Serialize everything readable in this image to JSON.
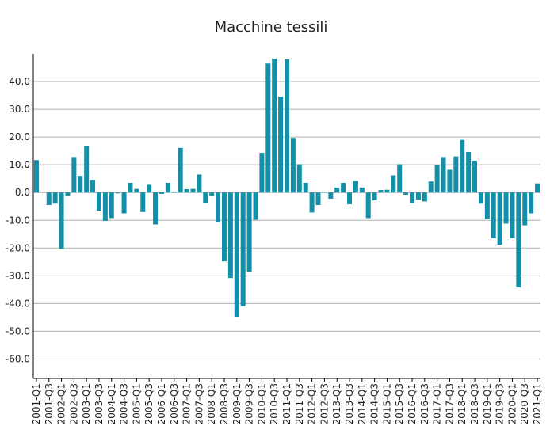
{
  "chart_data": {
    "type": "bar",
    "title": "Macchine tessili",
    "categories": [
      "2001-Q1",
      null,
      "2001-Q3",
      null,
      "2002-Q1",
      null,
      "2002-Q3",
      null,
      "2003-Q1",
      null,
      "2003-Q3",
      null,
      "2004-Q1",
      null,
      "2004-Q3",
      null,
      "2005-Q1",
      null,
      "2005-Q3",
      null,
      "2006-Q1",
      null,
      "2006-Q3",
      null,
      "2007-Q1",
      null,
      "2007-Q3",
      null,
      "2008-Q1",
      null,
      "2008-Q3",
      null,
      "2009-Q1",
      null,
      "2009-Q3",
      null,
      "2010-Q1",
      null,
      "2010-Q3",
      null,
      "2011-Q1",
      null,
      "2011-Q3",
      null,
      "2012-Q1",
      null,
      "2012-Q3",
      null,
      "2013-Q1",
      null,
      "2013-Q3",
      null,
      "2014-Q1",
      null,
      "2014-Q3",
      null,
      "2015-Q1",
      null,
      "2015-Q3",
      null,
      "2016-Q1",
      null,
      "2016-Q3",
      null,
      "2017-Q1",
      null,
      "2017-Q3",
      null,
      "2018-Q1",
      null,
      "2018-Q3",
      null,
      "2019-Q1",
      null,
      "2019-Q3",
      null,
      "2020-Q1",
      null,
      "2020-Q3",
      null,
      "2021-Q1"
    ],
    "values": [
      11.7,
      0,
      -4.5,
      -4,
      -20.3,
      -1.2,
      12.8,
      6,
      16.9,
      4.6,
      -6.5,
      -10.2,
      -9.2,
      -0.3,
      -7.5,
      3.5,
      1.3,
      -7,
      2.8,
      -11.5,
      -0.5,
      3.5,
      0.3,
      16.1,
      1.2,
      1.3,
      6.5,
      -3.8,
      -1.2,
      -10.7,
      -24.8,
      -30.8,
      -44.8,
      -41,
      -28.5,
      -9.8,
      14.3,
      46.5,
      48.3,
      34.6,
      48,
      19.7,
      10.2,
      3.5,
      -7.2,
      -4.5,
      0.2,
      -2.2,
      1.8,
      3.5,
      -4.2,
      4.2,
      1.8,
      -9.2,
      -2.8,
      0.9,
      1,
      6.2,
      10.2,
      -0.8,
      -3.8,
      -2.5,
      -3.2,
      4,
      10,
      12.8,
      8.2,
      13,
      19,
      14.6,
      11.5,
      -4,
      -9.5,
      -16.5,
      -18.8,
      -11.2,
      -16.5,
      -34.2,
      -11.8,
      -7.5,
      3.3
    ],
    "color": "#1390a8",
    "ylim": [
      -67,
      50
    ],
    "yticks": [
      {
        "value": -60,
        "label": "-60.0"
      },
      {
        "value": -50,
        "label": "-50.0"
      },
      {
        "value": -40,
        "label": "-40.0"
      },
      {
        "value": -30,
        "label": "-30.0"
      },
      {
        "value": -20,
        "label": "-20.0"
      },
      {
        "value": -10,
        "label": "-10.0"
      },
      {
        "value": 0,
        "label": "0.0"
      },
      {
        "value": 10,
        "label": "10.0"
      },
      {
        "value": 20,
        "label": "20.0"
      },
      {
        "value": 30,
        "label": "30.0"
      },
      {
        "value": 40,
        "label": "40.0"
      }
    ],
    "grid": true
  }
}
